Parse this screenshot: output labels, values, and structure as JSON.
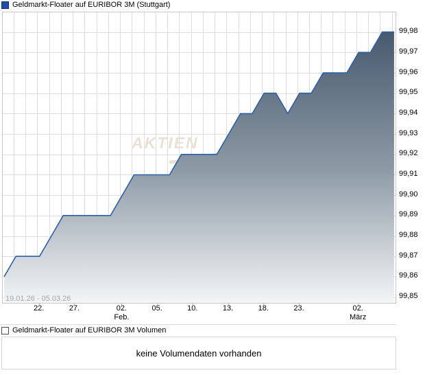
{
  "chart_panel": {
    "title": "Geldmarkt-Floater auf EURIBOR 3M (Stuttgart)",
    "date_range_label": "19.01.26 - 05.03.26",
    "watermark_text": "AKTIEN",
    "colors": {
      "line": "#2b5fa8",
      "fill_top": "#485a6e",
      "fill_mid": "#8c99a5",
      "fill_bottom": "#f3f5f6",
      "grid": "#dedede",
      "plot_border": "#c6c6c6",
      "legend_square": "#1e4ea6",
      "legend_square_border": "#0e3272",
      "volume_square": "#fdfdfd",
      "volume_square_border": "#4d4d4d",
      "watermark": "#e9e2d4",
      "date_range": "#a6a6a6"
    }
  },
  "chart_data": {
    "type": "area",
    "title": "Geldmarkt-Floater auf EURIBOR 3M (Stuttgart)",
    "xlabel": "",
    "ylabel": "",
    "grid": true,
    "legend_position": "none",
    "ylim": [
      99.847,
      99.99
    ],
    "y_ticks": [
      "99,98",
      "99,97",
      "99,96",
      "99,95",
      "99,94",
      "99,93",
      "99,92",
      "99,91",
      "99,90",
      "99,89",
      "99,88",
      "99,87",
      "99,86",
      "99,85"
    ],
    "x_ticks": [
      {
        "label": "22.",
        "day_index": 3
      },
      {
        "label": "27.",
        "day_index": 6
      },
      {
        "label": "02.",
        "sub": "Feb.",
        "day_index": 10
      },
      {
        "label": "05.",
        "day_index": 13
      },
      {
        "label": "10.",
        "day_index": 16
      },
      {
        "label": "13.",
        "day_index": 19
      },
      {
        "label": "18.",
        "day_index": 22
      },
      {
        "label": "23.",
        "day_index": 25
      },
      {
        "label": "02.",
        "sub": "März",
        "day_index": 30
      }
    ],
    "dates": [
      "19.01.26",
      "20.01.26",
      "21.01.26",
      "22.01.26",
      "23.01.26",
      "26.01.26",
      "27.01.26",
      "28.01.26",
      "29.01.26",
      "30.01.26",
      "02.02.26",
      "03.02.26",
      "04.02.26",
      "05.02.26",
      "06.02.26",
      "09.02.26",
      "10.02.26",
      "11.02.26",
      "12.02.26",
      "13.02.26",
      "16.02.26",
      "17.02.26",
      "18.02.26",
      "19.02.26",
      "20.02.26",
      "23.02.26",
      "24.02.26",
      "25.02.26",
      "26.02.26",
      "27.02.26",
      "02.03.26",
      "03.03.26",
      "04.03.26",
      "05.03.26"
    ],
    "values": [
      99.86,
      99.87,
      99.87,
      99.87,
      99.88,
      99.89,
      99.89,
      99.89,
      99.89,
      99.89,
      99.9,
      99.91,
      99.91,
      99.91,
      99.91,
      99.92,
      99.92,
      99.92,
      99.92,
      99.93,
      99.94,
      99.94,
      99.95,
      99.95,
      99.94,
      99.95,
      99.95,
      99.96,
      99.96,
      99.96,
      99.97,
      99.97,
      99.98,
      99.98
    ]
  },
  "volume_panel": {
    "title": "Geldmarkt-Floater auf EURIBOR 3M Volumen",
    "message": "keine Volumendaten vorhanden"
  }
}
